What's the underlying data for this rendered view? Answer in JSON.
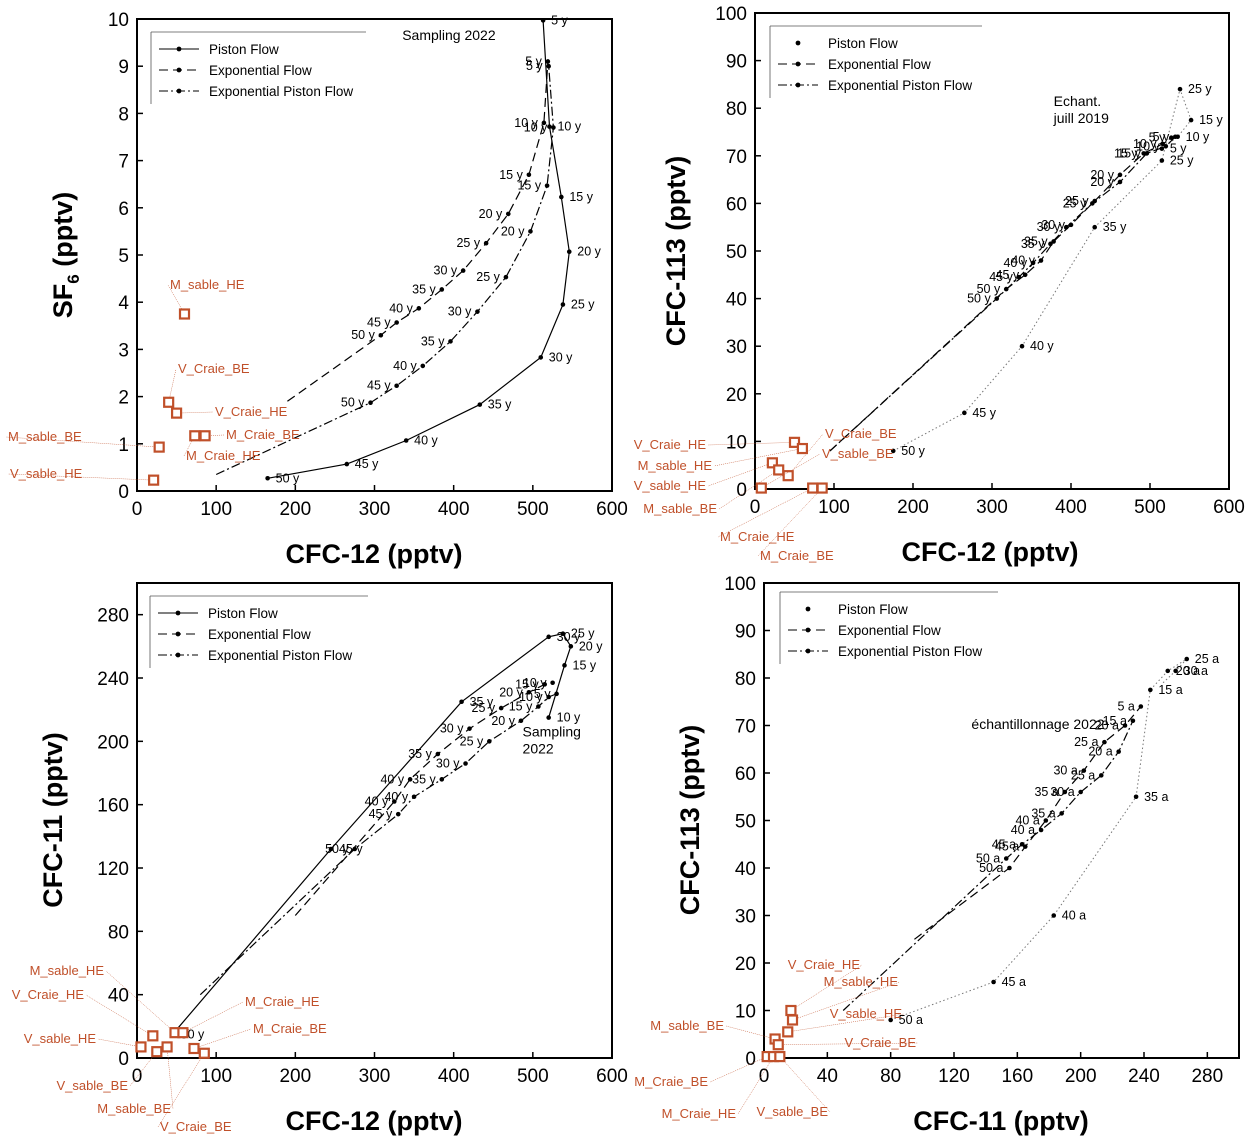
{
  "colors": {
    "sample": "#c0502a",
    "curve": "#000000",
    "axis": "#000000"
  },
  "chart_data": [
    {
      "id": "p1",
      "type": "line",
      "xlabel": "CFC-12 (pptv)",
      "ylabel": "SF",
      "ylabel_sub": "6",
      "ylabel_suffix": " (pptv)",
      "xlim": [
        0,
        600
      ],
      "ylim": [
        0,
        10
      ],
      "xticks": [
        0,
        100,
        200,
        300,
        400,
        500,
        600
      ],
      "yticks": [
        0,
        1,
        2,
        3,
        4,
        5,
        6,
        7,
        8,
        9,
        10
      ],
      "annotation": {
        "text": "Sampling 2022",
        "x": 335,
        "y": 9.55
      },
      "legend": {
        "position": "top-left",
        "entries": [
          "Piston Flow",
          "Exponential Flow",
          "Exponential Piston Flow"
        ],
        "styles": [
          "solid",
          "dash",
          "dashdot"
        ]
      },
      "series": [
        {
          "name": "Piston Flow",
          "style": "solid",
          "x": [
            165,
            265,
            340,
            433,
            510,
            538,
            546,
            536,
            521,
            513
          ],
          "y": [
            0.27,
            0.57,
            1.07,
            1.83,
            2.83,
            3.95,
            5.07,
            6.23,
            7.72,
            9.97
          ],
          "labels": [
            "50 y",
            "45 y",
            "40 y",
            "35 y",
            "30 y",
            "25 y",
            "20 y",
            "15 y",
            "10 y",
            "5 y"
          ]
        },
        {
          "name": "Exponential Flow",
          "style": "dash",
          "x": [
            190,
            308,
            328,
            356,
            385,
            412,
            441,
            469,
            495,
            514,
            519
          ],
          "y": [
            1.9,
            3.3,
            3.57,
            3.87,
            4.27,
            4.67,
            5.25,
            5.87,
            6.7,
            7.8,
            9.1
          ],
          "labels": [
            "",
            "50 y",
            "45 y",
            "40 y",
            "35 y",
            "30 y",
            "25 y",
            "20 y",
            "15 y",
            "10 y",
            "5 y"
          ]
        },
        {
          "name": "Exponential Piston Flow",
          "style": "dashdot",
          "x": [
            100,
            295,
            328,
            361,
            396,
            430,
            466,
            497,
            518,
            526,
            520
          ],
          "y": [
            0.35,
            1.87,
            2.23,
            2.65,
            3.17,
            3.8,
            4.53,
            5.5,
            6.47,
            7.7,
            9.0
          ],
          "labels": [
            "",
            "50 y",
            "45 y",
            "40 y",
            "35 y",
            "30 y",
            "25 y",
            "20 y",
            "15 y",
            "10 y",
            "5 y"
          ]
        }
      ],
      "samples": [
        {
          "name": "M_sable_HE",
          "x": 60,
          "y": 3.75
        },
        {
          "name": "V_Craie_BE",
          "x": 40,
          "y": 1.88
        },
        {
          "name": "V_Craie_HE",
          "x": 50,
          "y": 1.65
        },
        {
          "name": "M_Craie_BE",
          "x": 86,
          "y": 1.17
        },
        {
          "name": "M_Craie_HE",
          "x": 73,
          "y": 1.17
        },
        {
          "name": "M_sable_BE",
          "x": 28,
          "y": 0.93
        },
        {
          "name": "V_sable_HE",
          "x": 21,
          "y": 0.23
        }
      ]
    },
    {
      "id": "p2",
      "type": "line",
      "xlabel": "CFC-12 (pptv)",
      "ylabel": "CFC-113 (pptv)",
      "xlim": [
        0,
        600
      ],
      "ylim": [
        0,
        100
      ],
      "xticks": [
        0,
        100,
        200,
        300,
        400,
        500,
        600
      ],
      "yticks": [
        0,
        10,
        20,
        30,
        40,
        50,
        60,
        70,
        80,
        90,
        100
      ],
      "annotation": {
        "text": "Echant. juill 2019",
        "lines": [
          "Echant.",
          "juill 2019"
        ],
        "x": 378,
        "y": 80.5
      },
      "legend": {
        "position": "top-left",
        "entries": [
          "Piston Flow",
          "Exponential Flow",
          "Exponential Piston Flow"
        ],
        "styles": [
          "dot",
          "dash",
          "dashdot"
        ]
      },
      "series": [
        {
          "name": "Piston Flow",
          "style": "dot",
          "x": [
            175,
            265,
            338,
            430,
            515,
            538,
            552,
            535,
            515
          ],
          "y": [
            8,
            16,
            30,
            55,
            69,
            84,
            77.5,
            74,
            71.5
          ],
          "labels": [
            "50 y",
            "45 y",
            "40 y",
            "35 y",
            "25 y",
            "25 y",
            "15 y",
            "10 y",
            "5 y"
          ]
        },
        {
          "name": "Exponential Flow",
          "style": "dash",
          "x": [
            95,
            318,
            342,
            362,
            378,
            400,
            430,
            462,
            492,
            516,
            527
          ],
          "y": [
            8,
            42,
            45,
            48,
            52,
            55.5,
            60.5,
            66,
            70.5,
            72.5,
            73.8
          ],
          "labels": [
            "",
            "50 y",
            "45 y",
            "40 y",
            "35 y",
            "30 y",
            "25 y",
            "20 y",
            "15 y",
            "10 y",
            "5 y"
          ]
        },
        {
          "name": "Exponential Piston Flow",
          "style": "dashdot",
          "x": [
            95,
            306,
            334,
            352,
            374,
            394,
            427,
            462,
            496,
            520,
            532
          ],
          "y": [
            8,
            40,
            44.5,
            47.5,
            51.5,
            55,
            60,
            64.5,
            70.5,
            72,
            74
          ],
          "labels": [
            "",
            "50 y",
            "45 y",
            "40 y",
            "35 y",
            "30 y",
            "25 y",
            "20 y",
            "15 y",
            "10 y",
            "5 y"
          ]
        }
      ],
      "samples": [
        {
          "name": "V_Craie_HE",
          "x": 50,
          "y": 9.8
        },
        {
          "name": "M_sable_HE",
          "x": 60,
          "y": 8.5
        },
        {
          "name": "V_sable_HE",
          "x": 22,
          "y": 5.5
        },
        {
          "name": "M_sable_BE",
          "x": 30,
          "y": 4.0
        },
        {
          "name": "V_Craie_BE",
          "x": 42,
          "y": 2.8
        },
        {
          "name": "V_sable_BE",
          "x": 8,
          "y": 0.2
        },
        {
          "name": "M_Craie_HE",
          "x": 73,
          "y": 0.2
        },
        {
          "name": "M_Craie_BE",
          "x": 85,
          "y": 0.2
        }
      ]
    },
    {
      "id": "p3",
      "type": "line",
      "xlabel": "CFC-12 (pptv)",
      "ylabel": "CFC-11 (pptv)",
      "xlim": [
        0,
        600
      ],
      "ylim": [
        0,
        300
      ],
      "xticks": [
        0,
        100,
        200,
        300,
        400,
        500,
        600
      ],
      "yticks": [
        0,
        40,
        80,
        120,
        160,
        200,
        240,
        280
      ],
      "annotation": {
        "text": "Sampling 2022",
        "lines": [
          "Sampling",
          "2022"
        ],
        "x": 487,
        "y": 203
      },
      "legend": {
        "position": "top-left",
        "entries": [
          "Piston Flow",
          "Exponential Flow",
          "Exponential Piston Flow"
        ],
        "styles": [
          "solid",
          "dash",
          "dashdot"
        ]
      },
      "series": [
        {
          "name": "Piston Flow",
          "style": "solid",
          "x": [
            45,
            245,
            410,
            520,
            538,
            548,
            540,
            520
          ],
          "y": [
            15,
            132,
            225,
            266,
            268,
            260,
            248,
            215
          ],
          "labels": [
            "50 y",
            "45 y",
            "35 y",
            "30 y",
            "25 y",
            "20 y",
            "15 y",
            "10 y"
          ]
        },
        {
          "name": "Exponential Flow",
          "style": "dash",
          "x": [
            200,
            325,
            345,
            380,
            420,
            460,
            495,
            515,
            525
          ],
          "y": [
            90,
            162,
            176,
            192,
            208,
            221,
            231,
            236,
            237
          ],
          "labels": [
            "",
            "40 y",
            "40 y",
            "35 y",
            "30 y",
            "25 y",
            "20 y",
            "15 y",
            "10 y"
          ]
        },
        {
          "name": "Exponential Piston Flow",
          "style": "dashdot",
          "x": [
            80,
            275,
            330,
            350,
            385,
            415,
            445,
            485,
            507,
            520,
            530
          ],
          "y": [
            40,
            132,
            154,
            165,
            176,
            186,
            200,
            213,
            222,
            228,
            230
          ],
          "labels": [
            "",
            "50 y",
            "45 y",
            "40 y",
            "35 y",
            "30 y",
            "25 y",
            "20 y",
            "15 y",
            "10 y",
            "5 y"
          ]
        }
      ],
      "samples": [
        {
          "name": "M_sable_HE",
          "x": 48,
          "y": 16
        },
        {
          "name": "V_Craie_HE",
          "x": 20,
          "y": 14
        },
        {
          "name": "V_sable_HE",
          "x": 5,
          "y": 7
        },
        {
          "name": "V_sable_BE",
          "x": 25,
          "y": 4
        },
        {
          "name": "M_sable_BE",
          "x": 38,
          "y": 7
        },
        {
          "name": "M_Craie_HE",
          "x": 58,
          "y": 16
        },
        {
          "name": "M_Craie_BE",
          "x": 72,
          "y": 6
        },
        {
          "name": "V_Craie_BE",
          "x": 85,
          "y": 3
        }
      ]
    },
    {
      "id": "p4",
      "type": "line",
      "xlabel": "CFC-11 (pptv)",
      "ylabel": "CFC-113 (pptv)",
      "xlim": [
        0,
        300
      ],
      "ylim": [
        0,
        100
      ],
      "xticks": [
        0,
        40,
        80,
        120,
        160,
        200,
        240,
        280
      ],
      "yticks": [
        0,
        10,
        20,
        30,
        40,
        50,
        60,
        70,
        80,
        90,
        100
      ],
      "annotation": {
        "text": "échantillonnage 2022",
        "x": 131,
        "y": 69.3
      },
      "legend": {
        "position": "top-left",
        "entries": [
          "Piston Flow",
          "Exponential Flow",
          "Exponential Piston Flow"
        ],
        "styles": [
          "dot",
          "dash",
          "dashdot"
        ]
      },
      "series": [
        {
          "name": "Piston Flow",
          "style": "dot",
          "x": [
            80,
            145,
            183,
            235,
            244,
            255,
            267,
            260,
            252
          ],
          "y": [
            8,
            16,
            30,
            55,
            77.5,
            81.5,
            84,
            81.5,
            79
          ],
          "labels": [
            "50 a",
            "45 a",
            "40 a",
            "35 a",
            "15 a",
            "20 a",
            "25 a",
            "30 a",
            ""
          ]
        },
        {
          "name": "Exponential Flow",
          "style": "dash",
          "x": [
            95,
            155,
            165,
            178,
            190,
            202,
            215,
            228,
            238
          ],
          "y": [
            25,
            40,
            44.5,
            50,
            56,
            60.5,
            66.5,
            70,
            74
          ],
          "labels": [
            "",
            "50 a",
            "45 a",
            "40 a",
            "35 a",
            "30 a",
            "25 a",
            "20 a",
            "5 a"
          ]
        },
        {
          "name": "Exponential Piston Flow",
          "style": "dashdot",
          "x": [
            50,
            153,
            163,
            175,
            188,
            200,
            213,
            224,
            233
          ],
          "y": [
            10,
            42,
            45,
            48,
            51.5,
            56,
            59.5,
            64.5,
            71
          ],
          "labels": [
            "",
            "50 a",
            "45 a",
            "40 a",
            "35 a",
            "30 a",
            "25 a",
            "20 a",
            "15 a"
          ]
        }
      ],
      "samples": [
        {
          "name": "V_Craie_HE",
          "x": 17,
          "y": 10
        },
        {
          "name": "M_sable_HE",
          "x": 18,
          "y": 8
        },
        {
          "name": "V_sable_HE",
          "x": 15,
          "y": 5.5
        },
        {
          "name": "M_sable_BE",
          "x": 7,
          "y": 4
        },
        {
          "name": "V_Craie_BE",
          "x": 9,
          "y": 2.8
        },
        {
          "name": "M_Craie_BE",
          "x": 2,
          "y": 0.3
        },
        {
          "name": "M_Craie_HE",
          "x": 6,
          "y": 0.3
        },
        {
          "name": "V_sable_BE",
          "x": 10,
          "y": 0.3
        }
      ]
    }
  ]
}
